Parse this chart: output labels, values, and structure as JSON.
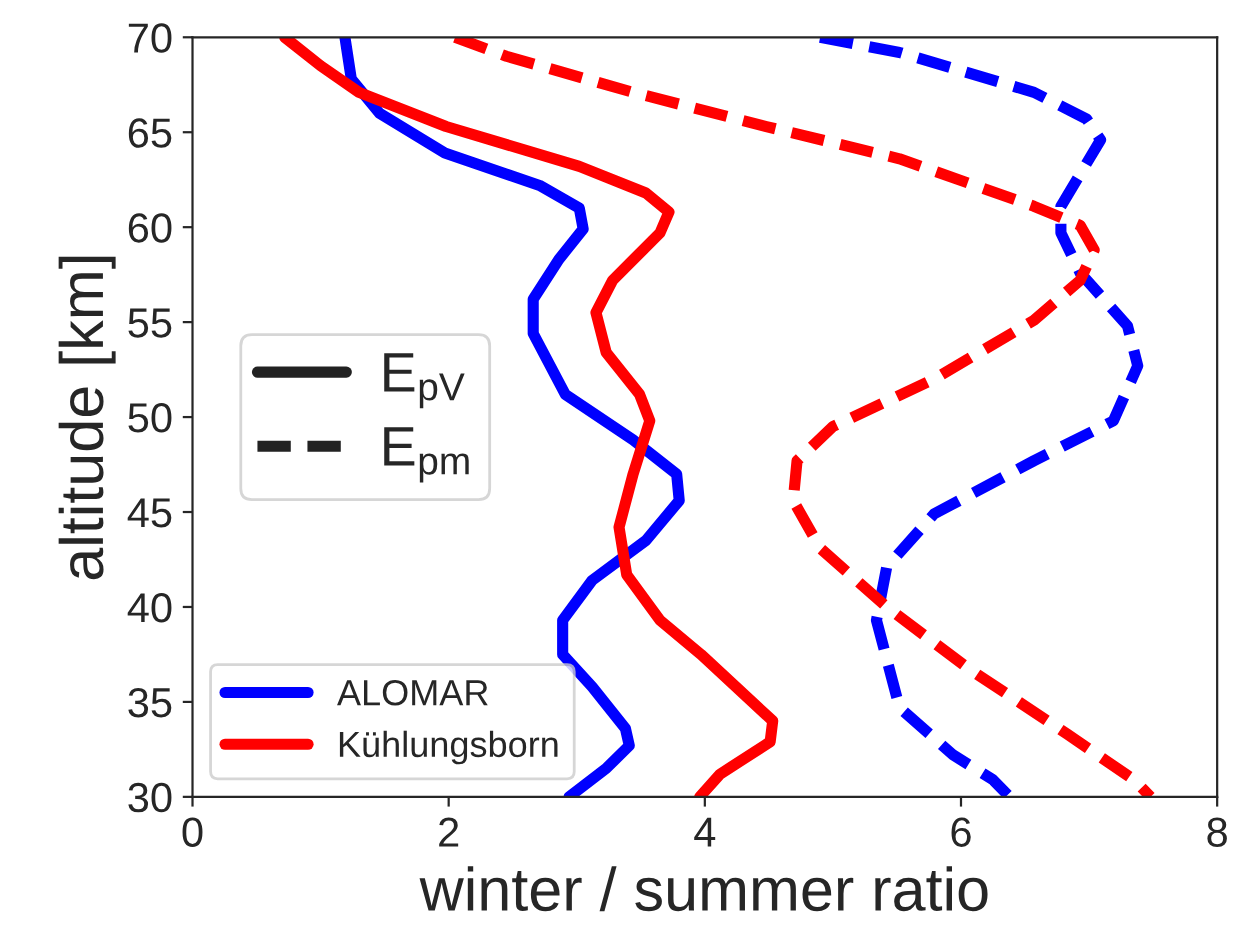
{
  "chart_data": {
    "type": "line",
    "xlabel": "winter / summer ratio",
    "ylabel": "altitude [km]",
    "xlim": [
      0,
      8
    ],
    "ylim": [
      30,
      70
    ],
    "xticks": [
      0,
      2,
      4,
      6,
      8
    ],
    "yticks": [
      30,
      35,
      40,
      45,
      50,
      55,
      60,
      65,
      70
    ],
    "grid": false,
    "legend": "bottom left",
    "marker": "none",
    "annotations": [
      "E$_{pV}$",
      "E$_{pm}$"
    ],
    "series": [
      {
        "name": "ALOMAR",
        "color": "#0000ff",
        "line_style": "solid",
        "x": [
          1.19,
          1.24,
          1.46,
          1.97,
          2.71,
          3.02,
          3.05,
          2.86,
          2.66,
          2.66,
          2.91,
          3.44,
          3.78,
          3.8,
          3.54,
          3.12,
          2.89,
          2.89,
          3.12,
          3.38,
          3.41,
          3.23,
          2.94
        ],
        "values": [
          70,
          67.8,
          66.0,
          63.9,
          62.2,
          61.0,
          59.9,
          58.3,
          56.2,
          54.4,
          51.2,
          48.8,
          47.0,
          45.6,
          43.5,
          41.4,
          39.3,
          37.5,
          35.8,
          33.6,
          32.7,
          31.5,
          30
        ]
      },
      {
        "name": "Kühlungsborn",
        "color": "#ff0000",
        "line_style": "solid",
        "x": [
          0.72,
          1.0,
          1.3,
          1.98,
          3.02,
          3.54,
          3.72,
          3.65,
          3.28,
          3.15,
          3.23,
          3.49,
          3.57,
          3.44,
          3.33,
          3.39,
          3.65,
          3.97,
          4.53,
          4.51,
          4.12,
          3.96
        ],
        "values": [
          70,
          68.5,
          67.1,
          65.3,
          63.2,
          61.8,
          60.8,
          59.7,
          57.2,
          55.5,
          53.4,
          51.2,
          49.8,
          47.0,
          44.2,
          41.7,
          39.3,
          37.5,
          34.0,
          32.9,
          31.2,
          30
        ]
      },
      {
        "color": "#0000ff",
        "line_style": "dashed",
        "x": [
          4.9,
          5.52,
          6.57,
          6.98,
          7.09,
          6.78,
          6.78,
          6.93,
          7.3,
          7.38,
          7.19,
          6.57,
          5.79,
          5.42,
          5.34,
          5.52,
          5.94,
          6.25,
          6.38
        ],
        "values": [
          70,
          69.2,
          67.1,
          65.7,
          64.6,
          61.1,
          59.7,
          57.6,
          54.8,
          52.7,
          49.8,
          47.7,
          44.9,
          42.1,
          39.3,
          34.7,
          32.2,
          30.9,
          30
        ]
      },
      {
        "color": "#ff0000",
        "line_style": "dashed",
        "x": [
          2.05,
          2.45,
          3.44,
          4.48,
          5.52,
          6.57,
          6.93,
          7.04,
          6.93,
          6.57,
          5.79,
          5.0,
          4.72,
          4.69,
          4.9,
          5.42,
          6.05,
          6.83,
          7.35,
          7.48
        ],
        "values": [
          70,
          69.0,
          67.1,
          65.3,
          63.6,
          61.1,
          60.1,
          58.8,
          57.2,
          55.1,
          52.0,
          49.5,
          47.7,
          45.6,
          43.1,
          40.0,
          36.8,
          33.3,
          30.9,
          30
        ]
      }
    ]
  }
}
